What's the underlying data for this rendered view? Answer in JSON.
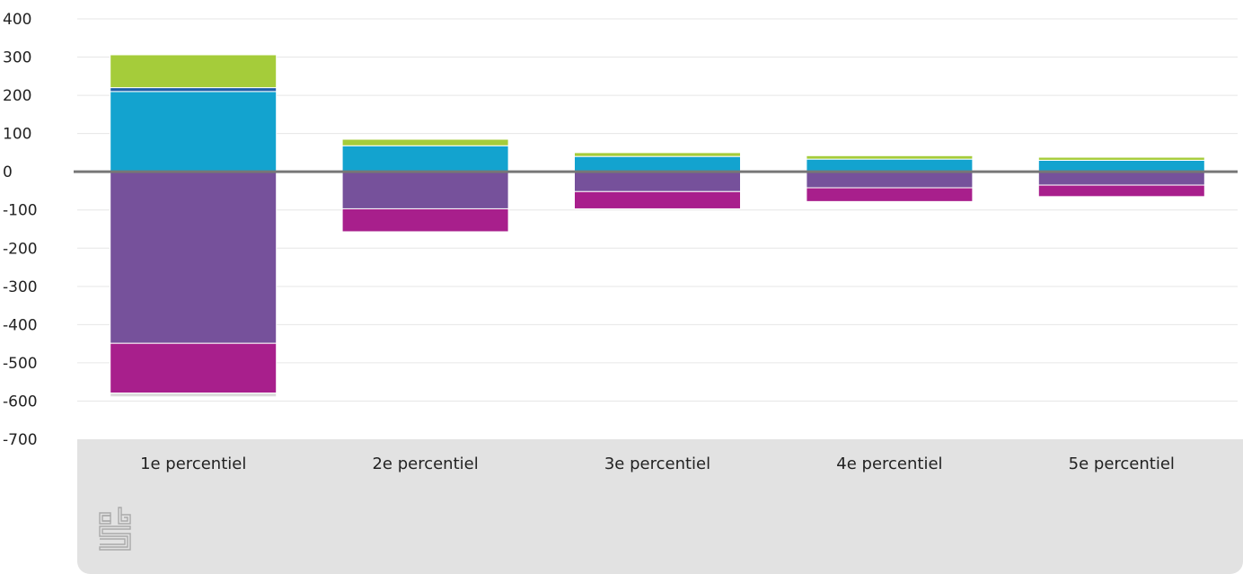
{
  "chart_data": {
    "type": "bar",
    "stacked": true,
    "title": "",
    "xlabel": "",
    "ylabel": "",
    "categories": [
      "1e percentiel",
      "2e percentiel",
      "3e percentiel",
      "4e percentiel",
      "5e percentiel"
    ],
    "ylim": [
      -700,
      400
    ],
    "yticks": [
      400,
      300,
      200,
      100,
      0,
      -100,
      -200,
      -300,
      -400,
      -500,
      -600,
      -700
    ],
    "grid": true,
    "legend": "none",
    "series": [
      {
        "color": "#76519b",
        "values": [
          -449,
          -97,
          -52,
          -42,
          -35
        ]
      },
      {
        "color": "#a81f8c",
        "values": [
          -130,
          -60,
          -45,
          -36,
          -30
        ]
      },
      {
        "color": "#dcdcdc",
        "values": [
          -10,
          0,
          0,
          0,
          0
        ]
      },
      {
        "color": "#13a3cf",
        "values": [
          210,
          68,
          40,
          33,
          30
        ]
      },
      {
        "color": "#1d5ea8",
        "values": [
          10,
          0,
          0,
          0,
          0
        ]
      },
      {
        "color": "#a5cc3a",
        "values": [
          86,
          17,
          10,
          9,
          8
        ]
      }
    ]
  },
  "logo": {
    "name": "cbs-logo-icon",
    "color": "#aaaaaa"
  }
}
